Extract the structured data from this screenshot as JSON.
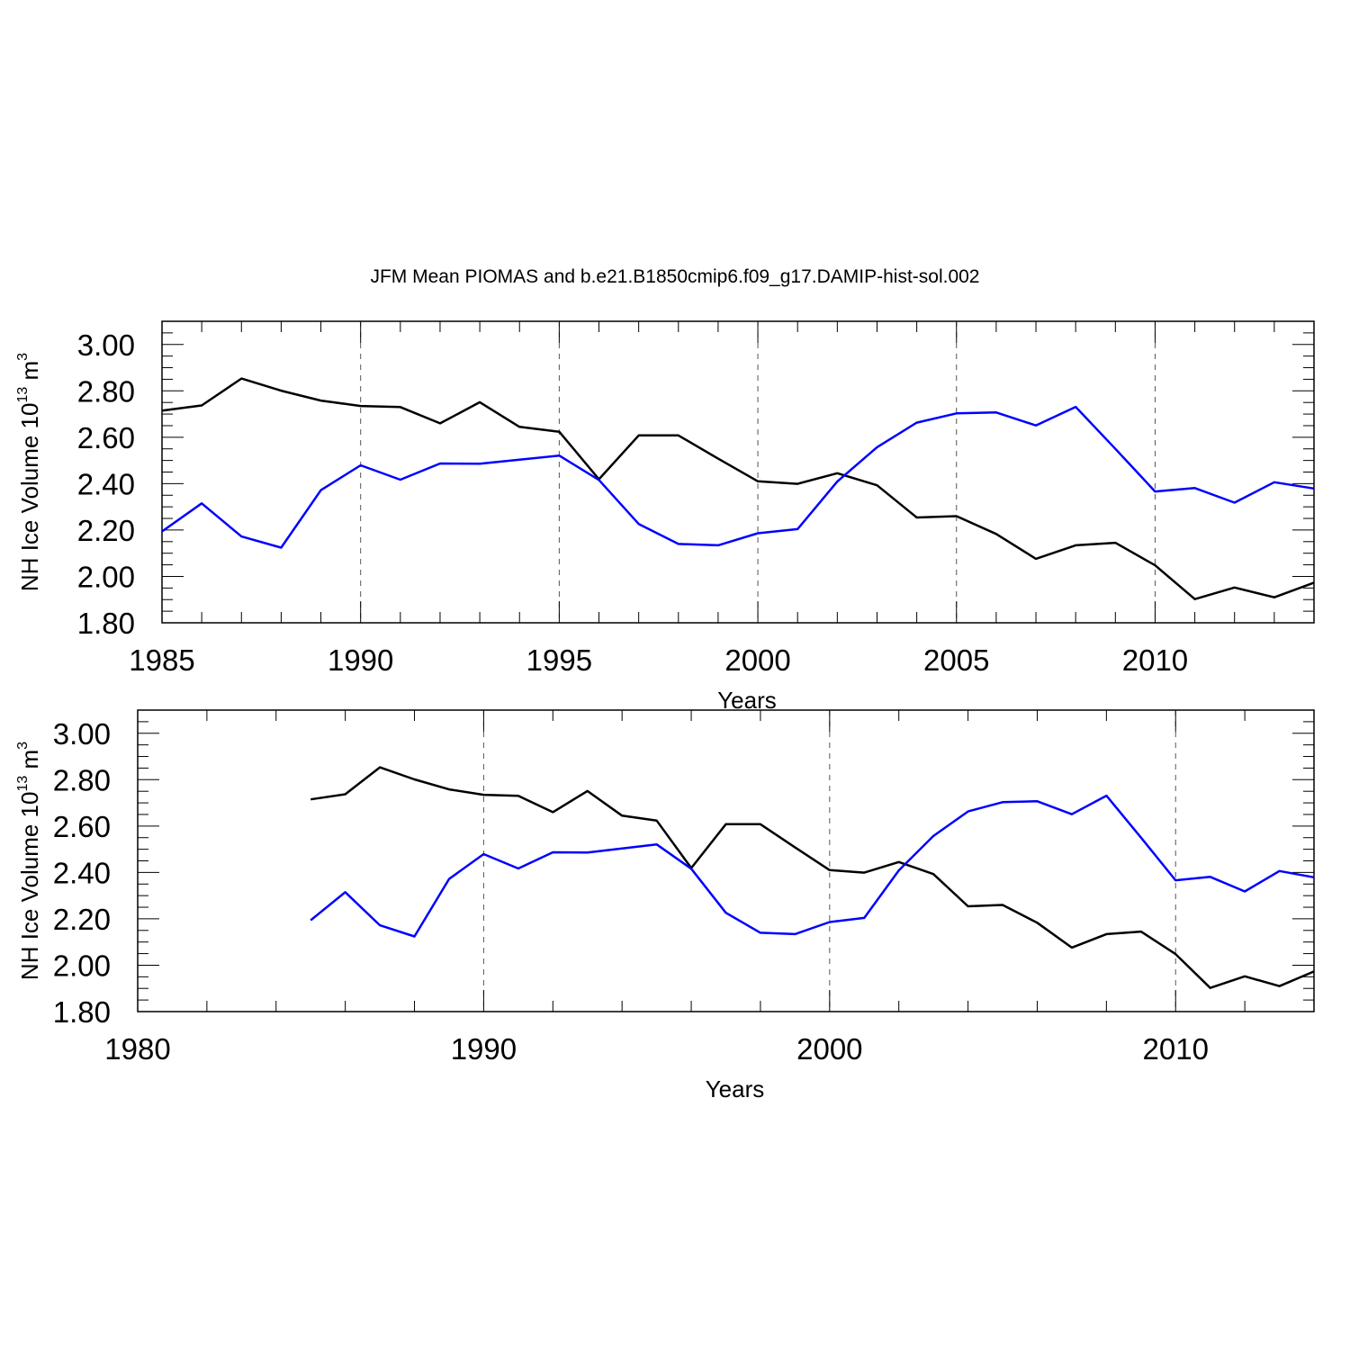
{
  "title": "JFM Mean PIOMAS and b.e21.B1850cmip6.f09_g17.DAMIP-hist-sol.002",
  "colors": {
    "series_0": "#000000",
    "series_1": "#0000ff",
    "grid": "#555555"
  },
  "chart_data": [
    {
      "type": "line",
      "xlabel": "Years",
      "ylabel_prefix": "NH Ice Volume 10",
      "ylabel_exp": "13",
      "ylabel_unit": " m",
      "ylabel_unit_exp": "3",
      "xlim": [
        1985,
        2014
      ],
      "ylim": [
        1.8,
        3.1
      ],
      "xticks_major": [
        1985,
        1990,
        1995,
        2000,
        2005,
        2010
      ],
      "xtick_labels": [
        "1985",
        "1990",
        "1995",
        "2000",
        "2005",
        "2010"
      ],
      "yticks_major": [
        1.8,
        2.0,
        2.2,
        2.4,
        2.6,
        2.8,
        3.0
      ],
      "ytick_labels": [
        "1.80",
        "2.00",
        "2.20",
        "2.40",
        "2.60",
        "2.80",
        "3.00"
      ],
      "grid": "dashed vertical at major x ticks",
      "x": [
        1985,
        1986,
        1987,
        1988,
        1989,
        1990,
        1991,
        1992,
        1993,
        1994,
        1995,
        1996,
        1997,
        1998,
        1999,
        2000,
        2001,
        2002,
        2003,
        2004,
        2005,
        2006,
        2007,
        2008,
        2009,
        2010,
        2011,
        2012,
        2013,
        2014
      ],
      "series": [
        {
          "name": "PIOMAS",
          "color": "#000000",
          "values": [
            2.715,
            2.737,
            2.853,
            2.801,
            2.758,
            2.735,
            2.73,
            2.66,
            2.751,
            2.645,
            2.624,
            2.419,
            2.608,
            2.608,
            2.508,
            2.41,
            2.399,
            2.445,
            2.393,
            2.254,
            2.26,
            2.183,
            2.076,
            2.134,
            2.145,
            2.048,
            1.902,
            1.952,
            1.91,
            1.973
          ]
        },
        {
          "name": "b.e21.B1850cmip6.f09_g17.DAMIP-hist-sol.002",
          "color": "#0000ff",
          "values": [
            2.194,
            2.315,
            2.172,
            2.124,
            2.372,
            2.479,
            2.417,
            2.487,
            2.486,
            2.503,
            2.521,
            2.416,
            2.226,
            2.14,
            2.134,
            2.186,
            2.204,
            2.409,
            2.557,
            2.663,
            2.703,
            2.707,
            2.651,
            2.731,
            2.55,
            2.366,
            2.381,
            2.318,
            2.406,
            2.379
          ]
        }
      ]
    },
    {
      "type": "line",
      "xlabel": "Years",
      "ylabel_prefix": "NH Ice Volume 10",
      "ylabel_exp": "13",
      "ylabel_unit": " m",
      "ylabel_unit_exp": "3",
      "xlim": [
        1980,
        2014
      ],
      "ylim": [
        1.8,
        3.1
      ],
      "xticks_major": [
        1980,
        1990,
        2000,
        2010
      ],
      "xtick_labels": [
        "1980",
        "1990",
        "2000",
        "2010"
      ],
      "yticks_major": [
        1.8,
        2.0,
        2.2,
        2.4,
        2.6,
        2.8,
        3.0
      ],
      "ytick_labels": [
        "1.80",
        "2.00",
        "2.20",
        "2.40",
        "2.60",
        "2.80",
        "3.00"
      ],
      "grid": "dashed vertical at major x ticks",
      "x": [
        1985,
        1986,
        1987,
        1988,
        1989,
        1990,
        1991,
        1992,
        1993,
        1994,
        1995,
        1996,
        1997,
        1998,
        1999,
        2000,
        2001,
        2002,
        2003,
        2004,
        2005,
        2006,
        2007,
        2008,
        2009,
        2010,
        2011,
        2012,
        2013,
        2014
      ],
      "series": [
        {
          "name": "PIOMAS",
          "color": "#000000",
          "values": [
            2.715,
            2.737,
            2.853,
            2.801,
            2.758,
            2.735,
            2.73,
            2.66,
            2.751,
            2.645,
            2.624,
            2.419,
            2.608,
            2.608,
            2.508,
            2.41,
            2.399,
            2.445,
            2.393,
            2.254,
            2.26,
            2.183,
            2.076,
            2.134,
            2.145,
            2.048,
            1.902,
            1.952,
            1.91,
            1.973
          ]
        },
        {
          "name": "b.e21.B1850cmip6.f09_g17.DAMIP-hist-sol.002",
          "color": "#0000ff",
          "values": [
            2.194,
            2.315,
            2.172,
            2.124,
            2.372,
            2.479,
            2.417,
            2.487,
            2.486,
            2.503,
            2.521,
            2.416,
            2.226,
            2.14,
            2.134,
            2.186,
            2.204,
            2.409,
            2.557,
            2.663,
            2.703,
            2.707,
            2.651,
            2.731,
            2.55,
            2.366,
            2.381,
            2.318,
            2.406,
            2.379
          ]
        }
      ]
    }
  ]
}
